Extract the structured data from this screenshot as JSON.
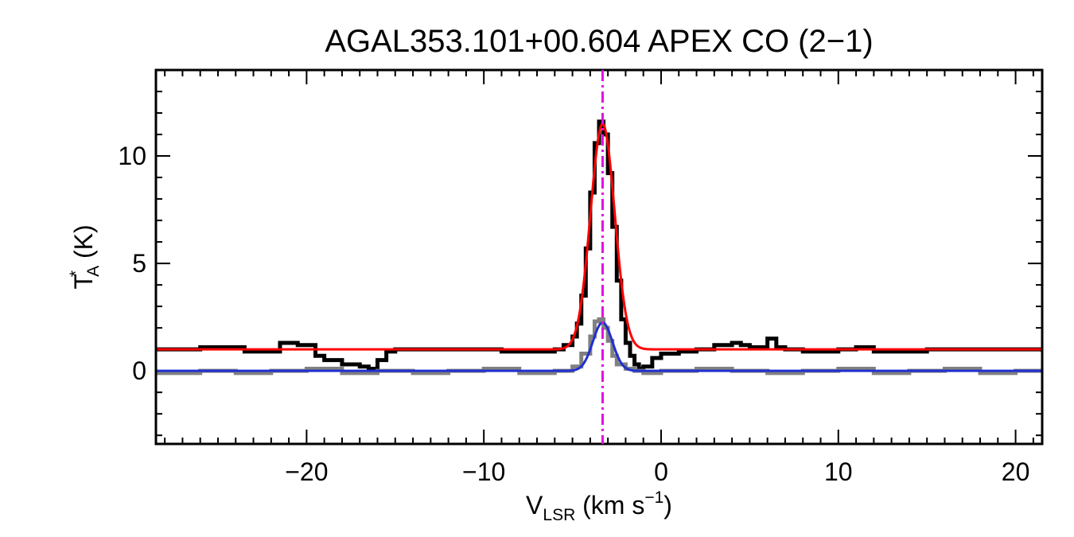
{
  "chart_data": {
    "type": "line",
    "title": "AGAL353.101+00.604  APEX CO (2−1)",
    "xlabel": {
      "main": "V",
      "sub": "LSR",
      "unit": " (km s",
      "sup": "−1",
      "close": ")"
    },
    "ylabel": {
      "main": "T",
      "sup": "*",
      "sub": "A",
      "unit": " (K)"
    },
    "xlim": [
      -28.5,
      21.5
    ],
    "ylim": [
      -3.4,
      14.0
    ],
    "xticks": [
      {
        "value": -20,
        "label": "−20"
      },
      {
        "value": -10,
        "label": "−10"
      },
      {
        "value": 0,
        "label": "0"
      },
      {
        "value": 10,
        "label": "10"
      },
      {
        "value": 20,
        "label": "20"
      }
    ],
    "yticks": [
      {
        "value": 0,
        "label": "0"
      },
      {
        "value": 5,
        "label": "5"
      },
      {
        "value": 10,
        "label": "10"
      }
    ],
    "x_minor_step": 1,
    "y_minor_step": 1,
    "vline": {
      "x": -3.3,
      "color": "#e010e0",
      "style": "dash-dot"
    },
    "series": [
      {
        "kind": "histogram",
        "color": "#000000",
        "x": [
          -28.5,
          -26.0,
          -23.5,
          -21.5,
          -20.5,
          -19.5,
          -19.0,
          -18.0,
          -17.0,
          -16.5,
          -16.0,
          -15.5,
          -15.0,
          -12.0,
          -9.0,
          -6.0,
          -5.5,
          -5.0,
          -4.75,
          -4.5,
          -4.25,
          -4.0,
          -3.75,
          -3.5,
          -3.25,
          -3.0,
          -2.75,
          -2.5,
          -2.25,
          -2.0,
          -1.75,
          -1.5,
          -1.25,
          -1.0,
          -0.5,
          0.0,
          1.0,
          2.0,
          3.0,
          4.0,
          4.5,
          5.0,
          6.0,
          6.5,
          7.0,
          8.0,
          10.0,
          11.0,
          12.0,
          15.0,
          18.0,
          21.5
        ],
        "y": [
          1.0,
          1.1,
          0.9,
          1.3,
          1.2,
          0.7,
          0.5,
          0.3,
          0.2,
          0.1,
          0.5,
          0.9,
          1.0,
          1.0,
          0.9,
          1.0,
          1.2,
          1.6,
          2.2,
          3.5,
          5.7,
          8.3,
          10.6,
          11.6,
          11.0,
          9.2,
          6.7,
          4.2,
          2.4,
          1.3,
          0.7,
          0.3,
          0.1,
          0.2,
          0.6,
          0.8,
          0.9,
          1.0,
          1.2,
          1.3,
          1.2,
          1.1,
          1.5,
          1.1,
          1.0,
          0.9,
          1.0,
          1.1,
          0.9,
          1.0,
          1.0,
          0.9
        ]
      },
      {
        "kind": "histogram",
        "color": "#808080",
        "x": [
          -28.5,
          -26.0,
          -24.0,
          -22.0,
          -20.0,
          -18.0,
          -16.0,
          -14.0,
          -12.0,
          -10.0,
          -8.0,
          -6.0,
          -5.0,
          -4.5,
          -4.0,
          -3.75,
          -3.5,
          -3.25,
          -3.0,
          -2.75,
          -2.5,
          -2.0,
          -1.5,
          -1.0,
          0.0,
          2.0,
          4.0,
          6.0,
          8.0,
          10.0,
          12.0,
          14.0,
          16.0,
          18.0,
          20.0,
          21.5
        ],
        "y": [
          -0.1,
          0.0,
          -0.1,
          0.0,
          0.1,
          -0.1,
          0.0,
          -0.1,
          0.0,
          0.1,
          -0.1,
          0.0,
          0.2,
          0.8,
          1.6,
          2.3,
          2.4,
          2.0,
          1.4,
          0.7,
          0.3,
          0.1,
          0.0,
          -0.1,
          0.0,
          0.1,
          0.0,
          -0.1,
          0.0,
          0.1,
          -0.1,
          0.0,
          0.1,
          -0.1,
          0.0,
          0.1
        ]
      },
      {
        "kind": "gaussian",
        "color": "#ff0000",
        "baseline": 1.0,
        "amplitude": 10.5,
        "center": -3.3,
        "sigma": 0.68
      },
      {
        "kind": "gaussian",
        "color": "#2030d0",
        "baseline": 0.0,
        "amplitude": 2.25,
        "center": -3.3,
        "sigma": 0.55
      }
    ]
  }
}
